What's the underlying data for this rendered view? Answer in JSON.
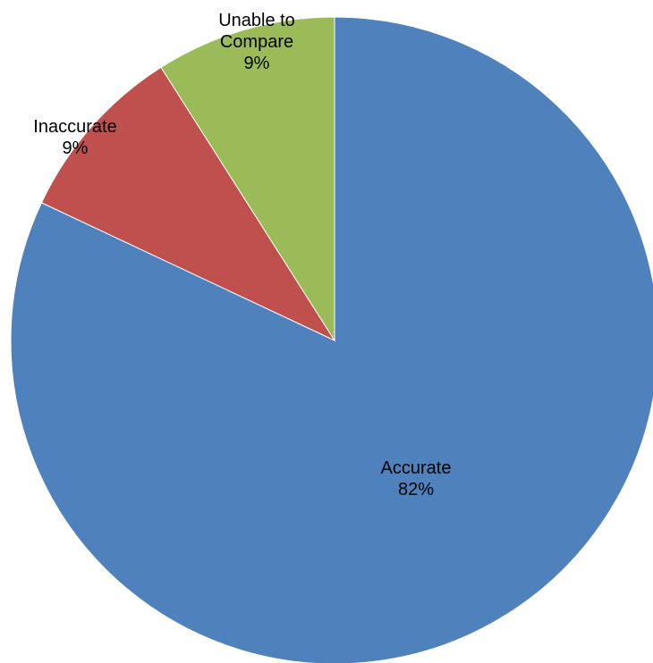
{
  "chart_data": {
    "type": "pie",
    "title": "",
    "start_angle_deg": 90,
    "direction": "clockwise",
    "slices": [
      {
        "name": "Accurate",
        "percent_label": "82%",
        "value": 82,
        "color": "#4F81BD"
      },
      {
        "name": "Inaccurate",
        "percent_label": "9%",
        "value": 9,
        "color": "#C0504D"
      },
      {
        "name": "Unable to Compare",
        "percent_label": "9%",
        "value": 9,
        "color": "#9BBB59"
      }
    ],
    "legend": "none"
  }
}
